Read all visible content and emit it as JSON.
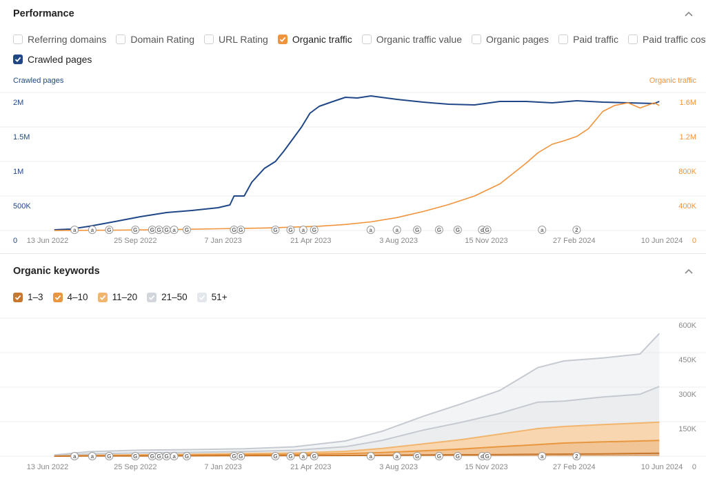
{
  "performance": {
    "title": "Performance",
    "metrics": [
      {
        "label": "Referring domains",
        "checked": false,
        "color": ""
      },
      {
        "label": "Domain Rating",
        "checked": false,
        "color": ""
      },
      {
        "label": "URL Rating",
        "checked": false,
        "color": ""
      },
      {
        "label": "Organic traffic",
        "checked": true,
        "color": "#f0933a"
      },
      {
        "label": "Organic traffic value",
        "checked": false,
        "color": ""
      },
      {
        "label": "Organic pages",
        "checked": false,
        "color": ""
      },
      {
        "label": "Paid traffic",
        "checked": false,
        "color": ""
      },
      {
        "label": "Paid traffic cost",
        "checked": false,
        "color": ""
      },
      {
        "label": "Crawled pages",
        "checked": true,
        "color": "#1f4788"
      }
    ],
    "left_axis_title": "Crawled pages",
    "right_axis_title": "Organic traffic"
  },
  "keywords": {
    "title": "Organic keywords",
    "buckets": [
      {
        "label": "1–3",
        "color": "#c8772c"
      },
      {
        "label": "4–10",
        "color": "#e8963f"
      },
      {
        "label": "11–20",
        "color": "#f2b56e"
      },
      {
        "label": "21–50",
        "color": "#d2d6dc"
      },
      {
        "label": "51+",
        "color": "#e3e6ea"
      }
    ]
  },
  "chart_data": [
    {
      "type": "line",
      "title": "Performance",
      "x_ticks": [
        "13 Jun 2022",
        "25 Sep 2022",
        "7 Jan 2023",
        "21 Apr 2023",
        "3 Aug 2023",
        "15 Nov 2023",
        "27 Feb 2024",
        "10 Jun 2024"
      ],
      "x_range": [
        "2022-06-13",
        "2024-06-10"
      ],
      "y_left": {
        "label": "Crawled pages",
        "ticks": [
          "0",
          "500K",
          "1M",
          "1.5M",
          "2M"
        ],
        "range": [
          0,
          2000000
        ],
        "color": "#1f4788"
      },
      "y_right": {
        "label": "Organic traffic",
        "ticks": [
          "0",
          "400K",
          "800K",
          "1.2M",
          "1.6M"
        ],
        "range": [
          0,
          1600000
        ],
        "color": "#f0933a"
      },
      "series": [
        {
          "name": "Crawled pages",
          "axis": "left",
          "color": "#1f4788",
          "points": [
            [
              "2022-06-21",
              10000
            ],
            [
              "2022-07-10",
              20000
            ],
            [
              "2022-08-01",
              60000
            ],
            [
              "2022-09-01",
              130000
            ],
            [
              "2022-10-01",
              200000
            ],
            [
              "2022-11-01",
              260000
            ],
            [
              "2022-12-01",
              290000
            ],
            [
              "2023-01-01",
              330000
            ],
            [
              "2023-01-15",
              370000
            ],
            [
              "2023-01-20",
              500000
            ],
            [
              "2023-02-01",
              500000
            ],
            [
              "2023-02-10",
              700000
            ],
            [
              "2023-02-25",
              900000
            ],
            [
              "2023-03-10",
              1000000
            ],
            [
              "2023-03-20",
              1150000
            ],
            [
              "2023-04-01",
              1350000
            ],
            [
              "2023-04-10",
              1500000
            ],
            [
              "2023-04-20",
              1700000
            ],
            [
              "2023-05-01",
              1800000
            ],
            [
              "2023-05-15",
              1860000
            ],
            [
              "2023-06-01",
              1930000
            ],
            [
              "2023-06-15",
              1920000
            ],
            [
              "2023-07-01",
              1950000
            ],
            [
              "2023-08-01",
              1900000
            ],
            [
              "2023-09-01",
              1860000
            ],
            [
              "2023-10-01",
              1830000
            ],
            [
              "2023-11-01",
              1820000
            ],
            [
              "2023-12-01",
              1870000
            ],
            [
              "2024-01-01",
              1870000
            ],
            [
              "2024-02-01",
              1850000
            ],
            [
              "2024-03-01",
              1880000
            ],
            [
              "2024-04-01",
              1860000
            ],
            [
              "2024-05-01",
              1850000
            ],
            [
              "2024-06-01",
              1840000
            ],
            [
              "2024-06-07",
              1870000
            ]
          ]
        },
        {
          "name": "Organic traffic",
          "axis": "right",
          "color": "#f0933a",
          "points": [
            [
              "2022-06-21",
              0
            ],
            [
              "2022-09-01",
              4000
            ],
            [
              "2022-11-01",
              10000
            ],
            [
              "2023-01-01",
              20000
            ],
            [
              "2023-03-01",
              30000
            ],
            [
              "2023-05-01",
              50000
            ],
            [
              "2023-06-01",
              70000
            ],
            [
              "2023-07-01",
              100000
            ],
            [
              "2023-08-01",
              150000
            ],
            [
              "2023-09-01",
              220000
            ],
            [
              "2023-10-01",
              300000
            ],
            [
              "2023-11-01",
              400000
            ],
            [
              "2023-12-01",
              540000
            ],
            [
              "2024-01-01",
              780000
            ],
            [
              "2024-01-15",
              900000
            ],
            [
              "2024-02-01",
              1000000
            ],
            [
              "2024-02-15",
              1040000
            ],
            [
              "2024-03-01",
              1090000
            ],
            [
              "2024-03-15",
              1180000
            ],
            [
              "2024-04-01",
              1380000
            ],
            [
              "2024-04-15",
              1450000
            ],
            [
              "2024-05-01",
              1480000
            ],
            [
              "2024-05-15",
              1420000
            ],
            [
              "2024-06-01",
              1480000
            ],
            [
              "2024-06-07",
              1450000
            ]
          ]
        }
      ],
      "annotations": [
        {
          "date": "2022-07-15",
          "label": "a"
        },
        {
          "date": "2022-08-05",
          "label": "a"
        },
        {
          "date": "2022-08-25",
          "label": "G"
        },
        {
          "date": "2022-09-25",
          "label": "G"
        },
        {
          "date": "2022-10-15",
          "label": "G"
        },
        {
          "date": "2022-10-23",
          "label": "G"
        },
        {
          "date": "2022-11-01",
          "label": "G"
        },
        {
          "date": "2022-11-10",
          "label": "a"
        },
        {
          "date": "2022-11-25",
          "label": "G"
        },
        {
          "date": "2023-01-20",
          "label": "G"
        },
        {
          "date": "2023-01-28",
          "label": "G"
        },
        {
          "date": "2023-03-10",
          "label": "G"
        },
        {
          "date": "2023-03-28",
          "label": "G"
        },
        {
          "date": "2023-04-12",
          "label": "a"
        },
        {
          "date": "2023-04-25",
          "label": "G"
        },
        {
          "date": "2023-07-01",
          "label": "a"
        },
        {
          "date": "2023-08-01",
          "label": "a"
        },
        {
          "date": "2023-08-25",
          "label": "G"
        },
        {
          "date": "2023-09-20",
          "label": "G"
        },
        {
          "date": "2023-10-12",
          "label": "G"
        },
        {
          "date": "2023-11-10",
          "label": "d"
        },
        {
          "date": "2023-11-16",
          "label": "G"
        },
        {
          "date": "2024-01-20",
          "label": "a"
        },
        {
          "date": "2024-03-01",
          "label": "2"
        }
      ]
    },
    {
      "type": "area",
      "title": "Organic keywords",
      "stacked": true,
      "x_ticks": [
        "13 Jun 2022",
        "25 Sep 2022",
        "7 Jan 2023",
        "21 Apr 2023",
        "3 Aug 2023",
        "15 Nov 2023",
        "27 Feb 2024",
        "10 Jun 2024"
      ],
      "x_range": [
        "2022-06-13",
        "2024-06-10"
      ],
      "y_right": {
        "ticks": [
          "0",
          "150K",
          "300K",
          "450K",
          "600K"
        ],
        "range": [
          0,
          600000
        ]
      },
      "x": [
        "2022-06-21",
        "2022-08-01",
        "2022-10-01",
        "2022-12-01",
        "2023-02-01",
        "2023-04-01",
        "2023-06-01",
        "2023-07-15",
        "2023-09-01",
        "2023-10-15",
        "2023-12-01",
        "2024-01-15",
        "2024-02-15",
        "2024-04-01",
        "2024-05-15",
        "2024-06-07"
      ],
      "series": [
        {
          "name": "1–3",
          "color": "#c8772c",
          "values": [
            0,
            500,
            1000,
            1500,
            2000,
            2500,
            3000,
            4000,
            5000,
            6000,
            7000,
            8000,
            9000,
            10000,
            12000,
            13000
          ]
        },
        {
          "name": "4–10",
          "color": "#e8963f",
          "values": [
            0,
            1000,
            2000,
            3000,
            4000,
            5000,
            8000,
            12000,
            18000,
            25000,
            34000,
            42000,
            48000,
            52000,
            54000,
            55000
          ]
        },
        {
          "name": "11–20",
          "color": "#f2b56e",
          "values": [
            0,
            2000,
            3000,
            4000,
            5000,
            6000,
            10000,
            18000,
            30000,
            40000,
            55000,
            70000,
            72000,
            75000,
            78000,
            80000
          ]
        },
        {
          "name": "21–50",
          "color": "#d2d6dc",
          "values": [
            2000,
            6000,
            8000,
            8000,
            9000,
            12000,
            20000,
            35000,
            60000,
            75000,
            90000,
            115000,
            110000,
            120000,
            125000,
            155000
          ]
        },
        {
          "name": "51+",
          "color": "#e3e6ea",
          "values": [
            3000,
            10000,
            12000,
            12000,
            12000,
            15000,
            25000,
            40000,
            60000,
            80000,
            100000,
            150000,
            175000,
            170000,
            175000,
            230000
          ]
        }
      ],
      "annotations": [
        {
          "date": "2022-07-15",
          "label": "a"
        },
        {
          "date": "2022-08-05",
          "label": "a"
        },
        {
          "date": "2022-08-25",
          "label": "G"
        },
        {
          "date": "2022-09-25",
          "label": "G"
        },
        {
          "date": "2022-10-15",
          "label": "G"
        },
        {
          "date": "2022-10-23",
          "label": "G"
        },
        {
          "date": "2022-11-01",
          "label": "G"
        },
        {
          "date": "2022-11-10",
          "label": "a"
        },
        {
          "date": "2022-11-25",
          "label": "G"
        },
        {
          "date": "2023-01-20",
          "label": "G"
        },
        {
          "date": "2023-01-28",
          "label": "G"
        },
        {
          "date": "2023-03-10",
          "label": "G"
        },
        {
          "date": "2023-03-28",
          "label": "G"
        },
        {
          "date": "2023-04-12",
          "label": "a"
        },
        {
          "date": "2023-04-25",
          "label": "G"
        },
        {
          "date": "2023-07-01",
          "label": "a"
        },
        {
          "date": "2023-08-01",
          "label": "a"
        },
        {
          "date": "2023-08-25",
          "label": "G"
        },
        {
          "date": "2023-09-20",
          "label": "G"
        },
        {
          "date": "2023-10-12",
          "label": "G"
        },
        {
          "date": "2023-11-10",
          "label": "d"
        },
        {
          "date": "2023-11-16",
          "label": "G"
        },
        {
          "date": "2024-01-20",
          "label": "a"
        },
        {
          "date": "2024-03-01",
          "label": "2"
        }
      ]
    }
  ]
}
